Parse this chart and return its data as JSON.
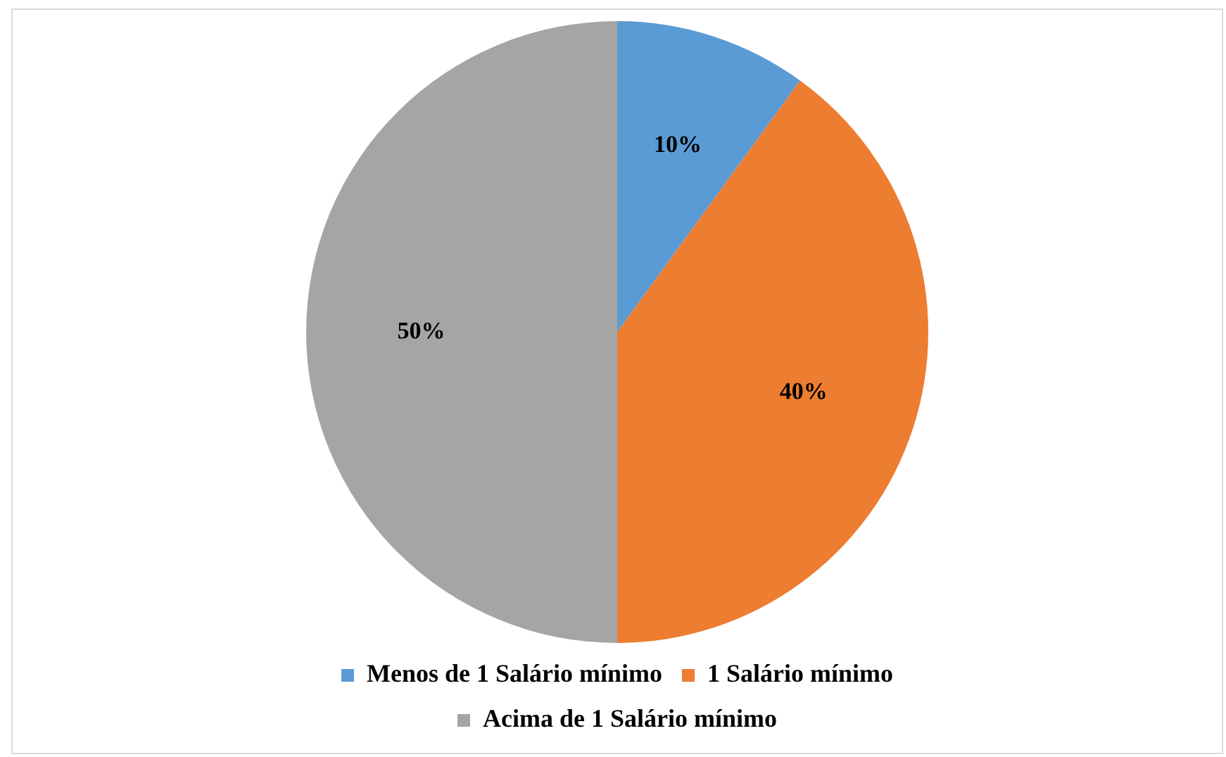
{
  "chart_data": {
    "type": "pie",
    "categories": [
      "Menos de 1 Salário mínimo",
      "1 Salário mínimo",
      "Acima de 1 Salário mínimo"
    ],
    "values": [
      10,
      40,
      50
    ],
    "colors": [
      "#5b9bd5",
      "#ed7d31",
      "#a5a5a5"
    ],
    "value_labels": [
      "10%",
      "40%",
      "50%"
    ],
    "legend": "bottom"
  }
}
